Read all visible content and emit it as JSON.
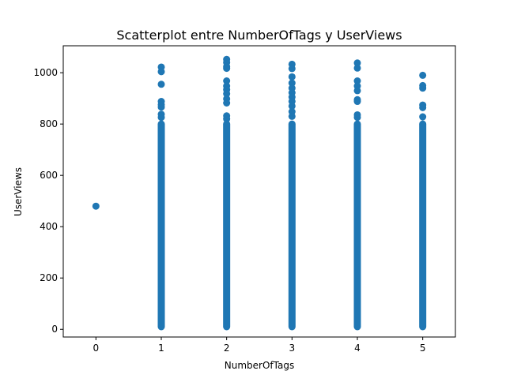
{
  "chart_data": {
    "type": "scatter",
    "title": "Scatterplot entre NumberOfTags y UserViews",
    "xlabel": "NumberOfTags",
    "ylabel": "UserViews",
    "xlim": [
      -0.5,
      5.5
    ],
    "ylim": [
      -30,
      1105
    ],
    "xticks": [
      0,
      1,
      2,
      3,
      4,
      5
    ],
    "yticks": [
      0,
      200,
      400,
      600,
      800,
      1000
    ],
    "grid": false,
    "legend": "none",
    "color": "#1f77b4",
    "points": [
      {
        "x": 0,
        "y": 480
      },
      {
        "x": 1,
        "y": 1022
      },
      {
        "x": 1,
        "y": 1004
      },
      {
        "x": 1,
        "y": 955
      },
      {
        "x": 1,
        "y": 888
      },
      {
        "x": 1,
        "y": 876
      },
      {
        "x": 1,
        "y": 866
      },
      {
        "x": 1,
        "y": 838
      },
      {
        "x": 1,
        "y": 826
      },
      {
        "x": 2,
        "y": 1052
      },
      {
        "x": 2,
        "y": 1040
      },
      {
        "x": 2,
        "y": 1024
      },
      {
        "x": 2,
        "y": 1017
      },
      {
        "x": 2,
        "y": 968
      },
      {
        "x": 2,
        "y": 948
      },
      {
        "x": 2,
        "y": 934
      },
      {
        "x": 2,
        "y": 918
      },
      {
        "x": 2,
        "y": 898
      },
      {
        "x": 2,
        "y": 882
      },
      {
        "x": 2,
        "y": 832
      },
      {
        "x": 2,
        "y": 820
      },
      {
        "x": 3,
        "y": 1033
      },
      {
        "x": 3,
        "y": 1016
      },
      {
        "x": 3,
        "y": 984
      },
      {
        "x": 3,
        "y": 960
      },
      {
        "x": 3,
        "y": 940
      },
      {
        "x": 3,
        "y": 922
      },
      {
        "x": 3,
        "y": 905
      },
      {
        "x": 3,
        "y": 888
      },
      {
        "x": 3,
        "y": 870
      },
      {
        "x": 3,
        "y": 848
      },
      {
        "x": 3,
        "y": 830
      },
      {
        "x": 4,
        "y": 1038
      },
      {
        "x": 4,
        "y": 1018
      },
      {
        "x": 4,
        "y": 968
      },
      {
        "x": 4,
        "y": 948
      },
      {
        "x": 4,
        "y": 930
      },
      {
        "x": 4,
        "y": 895
      },
      {
        "x": 4,
        "y": 888
      },
      {
        "x": 4,
        "y": 836
      },
      {
        "x": 4,
        "y": 826
      },
      {
        "x": 5,
        "y": 990
      },
      {
        "x": 5,
        "y": 950
      },
      {
        "x": 5,
        "y": 940
      },
      {
        "x": 5,
        "y": 874
      },
      {
        "x": 5,
        "y": 864
      },
      {
        "x": 5,
        "y": 828
      }
    ],
    "dense_ranges": [
      {
        "x": 1,
        "y_min": 10,
        "y_max": 800
      },
      {
        "x": 2,
        "y_min": 10,
        "y_max": 800
      },
      {
        "x": 3,
        "y_min": 10,
        "y_max": 800
      },
      {
        "x": 4,
        "y_min": 10,
        "y_max": 800
      },
      {
        "x": 5,
        "y_min": 10,
        "y_max": 800
      }
    ]
  }
}
